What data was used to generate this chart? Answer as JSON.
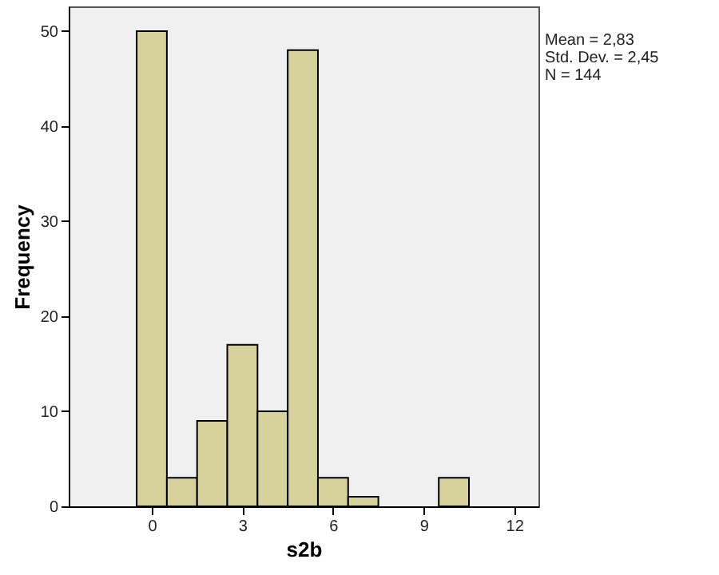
{
  "chart_data": {
    "type": "histogram",
    "xlabel": "s2b",
    "ylabel": "Frequency",
    "bins": [
      -0.5,
      0.5,
      1.5,
      2.5,
      3.5,
      4.5,
      5.5,
      6.5,
      7.5,
      8.5,
      9.5,
      10.5
    ],
    "values": [
      50,
      3,
      9,
      17,
      10,
      48,
      3,
      1,
      0,
      0,
      3
    ],
    "color": "#d5d29b",
    "xlim": [
      -2.75,
      12.8
    ],
    "xticks": [
      0,
      3,
      6,
      9,
      12
    ],
    "ylim": [
      0,
      52.6
    ],
    "yticks": [
      0,
      10,
      20,
      30,
      40,
      50
    ],
    "grid": false,
    "annotations": [
      "Mean = 2,83",
      "Std. Dev. = 2,45",
      "N = 144"
    ]
  }
}
